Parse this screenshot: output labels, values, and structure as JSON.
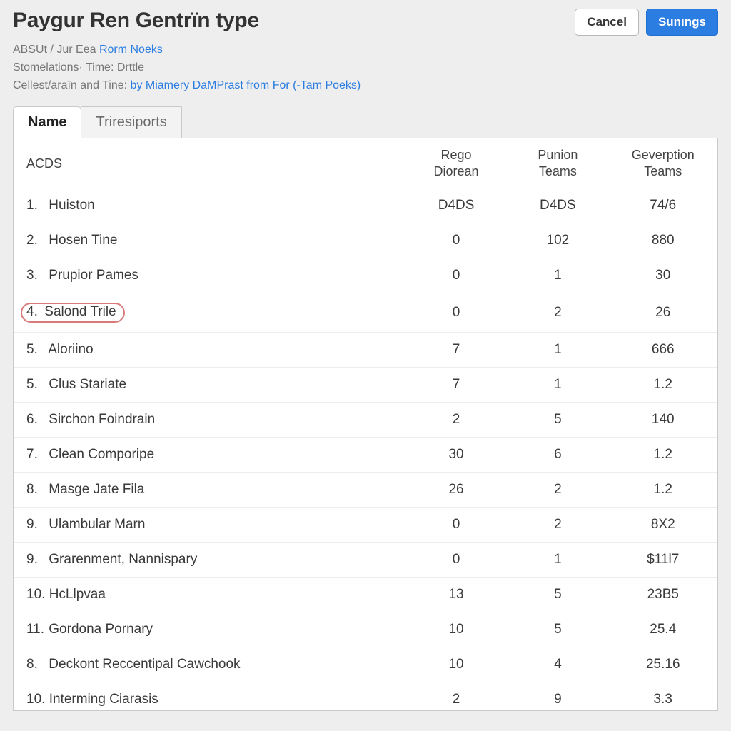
{
  "header": {
    "title": "Paygur Ren Gentrïn type",
    "cancel_label": "Cancel",
    "primary_label": "Sunıngs"
  },
  "meta": {
    "line1_prefix": "ABSUt / Jur Eea ",
    "line1_link": "Rorm Noeks",
    "line2": "Stomelations· Time: Drttle",
    "line3_prefix": "Cellest/araïn and Tine: ",
    "line3_link": "by Miamery DaMPrast from For (-Tam Poeks)"
  },
  "tabs": {
    "active_label": "Name",
    "other_label": "Triresiports"
  },
  "table": {
    "columns": {
      "acds": "ACDS",
      "rego_line1": "Rego",
      "rego_line2": "Diorean",
      "punion_line1": "Punion",
      "punion_line2": "Teams",
      "gev_line1": "Geverption",
      "gev_line2": "Teams"
    },
    "rows": [
      {
        "num": "1.",
        "name": "Huiston",
        "rego": "D4DS",
        "pun": "D4DS",
        "gev": "74/6",
        "highlight": false
      },
      {
        "num": "2.",
        "name": "Hosen Tine",
        "rego": "0",
        "pun": "102",
        "gev": "880",
        "highlight": false
      },
      {
        "num": "3.",
        "name": "Prupior Pames",
        "rego": "0",
        "pun": "1",
        "gev": "30",
        "highlight": false
      },
      {
        "num": "4.",
        "name": "Salond Trile",
        "rego": "0",
        "pun": "2",
        "gev": "26",
        "highlight": true
      },
      {
        "num": "5.",
        "name": "Aloriino",
        "rego": "7",
        "pun": "1",
        "gev": "666",
        "highlight": false
      },
      {
        "num": "5.",
        "name": "Clus Stariate",
        "rego": "7",
        "pun": "1",
        "gev": "1.2",
        "highlight": false
      },
      {
        "num": "6.",
        "name": "Sirchon Foindrain",
        "rego": "2",
        "pun": "5",
        "gev": "140",
        "highlight": false
      },
      {
        "num": "7.",
        "name": "Clean Comporipe",
        "rego": "30",
        "pun": "6",
        "gev": "1.2",
        "highlight": false
      },
      {
        "num": "8.",
        "name": "Masge Jate Fila",
        "rego": "26",
        "pun": "2",
        "gev": "1.2",
        "highlight": false
      },
      {
        "num": "9.",
        "name": "Ulambular Marn",
        "rego": "0",
        "pun": "2",
        "gev": "8X2",
        "highlight": false
      },
      {
        "num": "9.",
        "name": "Grarenment, Nannispary",
        "rego": "0",
        "pun": "1",
        "gev": "$11l7",
        "highlight": false
      },
      {
        "num": "10.",
        "name": "HcLlpvaa",
        "rego": "13",
        "pun": "5",
        "gev": "23B5",
        "highlight": false
      },
      {
        "num": "11.",
        "name": "Gordona Pornary",
        "rego": "10",
        "pun": "5",
        "gev": "25.4",
        "highlight": false
      },
      {
        "num": "8.",
        "name": "Deckont Reccentipal Cawchook",
        "rego": "10",
        "pun": "4",
        "gev": "25.16",
        "highlight": false
      },
      {
        "num": "10.",
        "name": "Interming Ciarasis",
        "rego": "2",
        "pun": "9",
        "gev": "3.3",
        "highlight": false
      }
    ]
  },
  "colors": {
    "page_bg": "#eeeeee",
    "panel_bg": "#ffffff",
    "border": "#c9c9c9",
    "row_border": "#ececec",
    "text": "#333333",
    "muted": "#777777",
    "link": "#2b7de1",
    "primary_btn_bg": "#2b7de1",
    "primary_btn_border": "#1f6ed1",
    "highlight_ring": "#d97b7b"
  }
}
